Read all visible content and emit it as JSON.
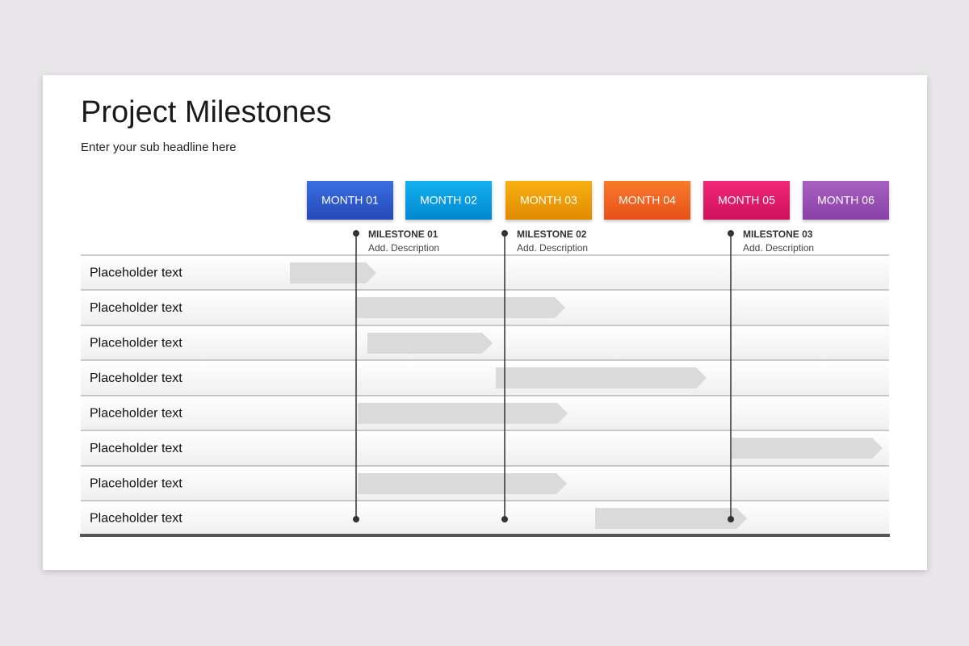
{
  "header": {
    "title": "Project Milestones",
    "subtitle": "Enter your sub headline here"
  },
  "months": [
    "MONTH 01",
    "MONTH 02",
    "MONTH 03",
    "MONTH 04",
    "MONTH 05",
    "MONTH 06"
  ],
  "milestones": [
    {
      "label": "MILESTONE 01",
      "description": "Add. Description"
    },
    {
      "label": "MILESTONE 02",
      "description": "Add. Description"
    },
    {
      "label": "MILESTONE 03",
      "description": "Add. Description"
    }
  ],
  "rows": [
    "Placeholder text",
    "Placeholder text",
    "Placeholder text",
    "Placeholder text",
    "Placeholder text",
    "Placeholder text",
    "Placeholder text",
    "Placeholder text"
  ]
}
